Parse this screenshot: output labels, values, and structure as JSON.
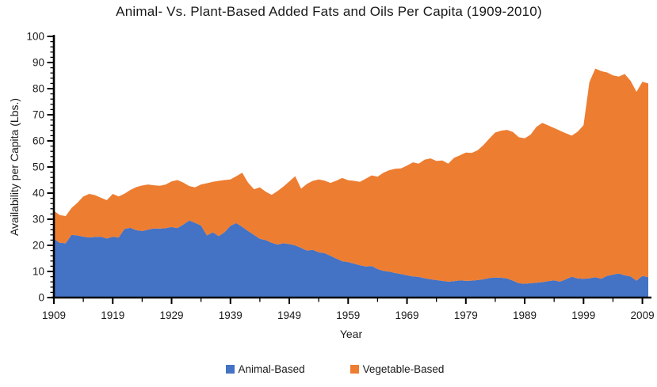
{
  "chart_data": {
    "type": "area",
    "stacked": true,
    "title": "Animal- Vs. Plant-Based Added Fats and Oils Per Capita (1909-2010)",
    "xlabel": "Year",
    "ylabel": "Availability per Capita (Lbs.)",
    "x_range": [
      1909,
      2010
    ],
    "x_step": 1,
    "ylim": [
      0,
      100
    ],
    "y_major_tick_step": 10,
    "y_minor_tick_step": 2,
    "x_major_ticks": [
      1909,
      1919,
      1929,
      1939,
      1949,
      1959,
      1969,
      1979,
      1989,
      1999,
      2009
    ],
    "x_minor_tick_step": 5,
    "grid": false,
    "legend_position": "bottom",
    "axis_color": "#000000",
    "text_color": "#1a1a1a",
    "series": [
      {
        "name": "Animal-Based",
        "color": "#4472C4",
        "values": [
          22.5,
          21.0,
          20.8,
          24.0,
          23.8,
          23.3,
          23.0,
          23.2,
          23.3,
          22.6,
          23.3,
          23.0,
          26.3,
          26.7,
          25.8,
          25.5,
          26.0,
          26.5,
          26.4,
          26.6,
          27.0,
          26.6,
          28.0,
          29.5,
          28.6,
          27.6,
          23.8,
          25.0,
          23.5,
          25.0,
          27.5,
          28.5,
          27.1,
          25.5,
          24.0,
          22.5,
          22.0,
          21.0,
          20.3,
          20.8,
          20.5,
          20.0,
          19.0,
          18.0,
          18.3,
          17.3,
          17.0,
          16.0,
          14.9,
          13.9,
          13.6,
          13.0,
          12.4,
          11.9,
          12.1,
          10.9,
          10.2,
          9.9,
          9.4,
          9.0,
          8.5,
          8.1,
          7.9,
          7.4,
          7.0,
          6.7,
          6.4,
          6.1,
          6.3,
          6.6,
          6.4,
          6.5,
          6.7,
          7.0,
          7.5,
          7.7,
          7.6,
          7.3,
          6.5,
          5.5,
          5.3,
          5.5,
          5.7,
          5.9,
          6.3,
          6.6,
          6.1,
          7.0,
          8.0,
          7.3,
          7.2,
          7.4,
          7.8,
          7.2,
          8.3,
          8.8,
          9.2,
          8.5,
          8.1,
          6.5,
          8.3,
          7.8
        ]
      },
      {
        "name": "Vegetable-Based",
        "color": "#ED7D31",
        "values": [
          10.7,
          10.6,
          10.4,
          10.3,
          12.5,
          15.4,
          16.7,
          16.0,
          14.9,
          14.7,
          16.4,
          15.7,
          13.5,
          14.5,
          16.5,
          17.4,
          17.3,
          16.5,
          16.4,
          16.7,
          17.5,
          18.4,
          16.0,
          13.2,
          13.6,
          15.7,
          20.0,
          19.3,
          21.2,
          20.0,
          17.7,
          18.0,
          20.7,
          18.5,
          17.5,
          19.7,
          18.5,
          18.3,
          20.5,
          21.7,
          24.0,
          26.5,
          22.7,
          25.5,
          26.4,
          27.9,
          27.8,
          27.9,
          29.9,
          31.9,
          31.3,
          31.7,
          31.9,
          33.6,
          34.7,
          35.4,
          37.6,
          38.9,
          39.9,
          40.5,
          42.0,
          43.7,
          43.4,
          45.4,
          46.3,
          45.6,
          46.1,
          45.2,
          47.2,
          47.9,
          49.1,
          48.9,
          49.7,
          51.4,
          53.4,
          55.5,
          56.3,
          56.9,
          56.9,
          55.9,
          55.7,
          56.9,
          59.7,
          61.0,
          59.6,
          58.3,
          57.8,
          55.9,
          54.0,
          56.2,
          58.8,
          75.1,
          79.9,
          79.5,
          77.9,
          76.3,
          75.4,
          77.1,
          74.9,
          72.3,
          74.3,
          74.2
        ]
      }
    ]
  }
}
